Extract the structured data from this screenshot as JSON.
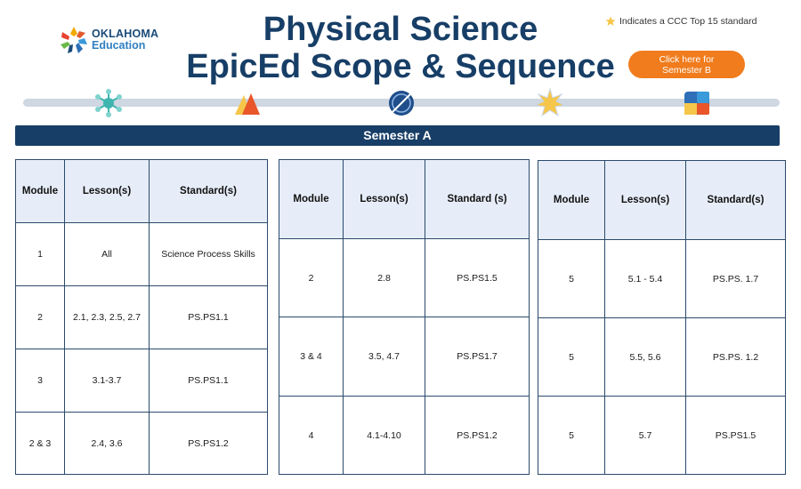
{
  "logo": {
    "line1": "OKLAHOMA",
    "line2": "Education"
  },
  "title": {
    "line1": "Physical Science",
    "line2": "EpicEd Scope & Sequence"
  },
  "note": {
    "text": "Indicates a CCC Top 15 standard",
    "icon": "star-icon"
  },
  "semester_b_button": {
    "label": "Click here for Semester B"
  },
  "timeline": {
    "icons": [
      "molecule-icon",
      "triangle-shapes-icon",
      "globe-icon",
      "sun-icon",
      "cube-icon"
    ]
  },
  "semester_a": {
    "label": "Semester A"
  },
  "tables": [
    {
      "headers": [
        "Module",
        "Lesson(s)",
        "Standard(s)"
      ],
      "rows": [
        [
          "1",
          "All",
          "Science Process Skills"
        ],
        [
          "2",
          "2.1, 2.3, 2.5, 2.7",
          "PS.PS1.1"
        ],
        [
          "3",
          "3.1-3.7",
          "PS.PS1.1"
        ],
        [
          "2 & 3",
          "2.4, 3.6",
          "PS.PS1.2"
        ]
      ]
    },
    {
      "headers": [
        "Module",
        "Lesson(s)",
        "Standard (s)"
      ],
      "rows": [
        [
          "2",
          "2.8",
          "PS.PS1.5"
        ],
        [
          "3 & 4",
          "3.5, 4.7",
          "PS.PS1.7"
        ],
        [
          "4",
          "4.1-4.10",
          "PS.PS1.2"
        ]
      ]
    },
    {
      "headers": [
        "Module",
        "Lesson(s)",
        "Standard(s)"
      ],
      "rows": [
        [
          "5",
          "5.1 - 5.4",
          "PS.PS. 1.7"
        ],
        [
          "5",
          "5.5, 5.6",
          "PS.PS. 1.2"
        ],
        [
          "5",
          "5.7",
          "PS.PS1.5"
        ]
      ]
    }
  ]
}
